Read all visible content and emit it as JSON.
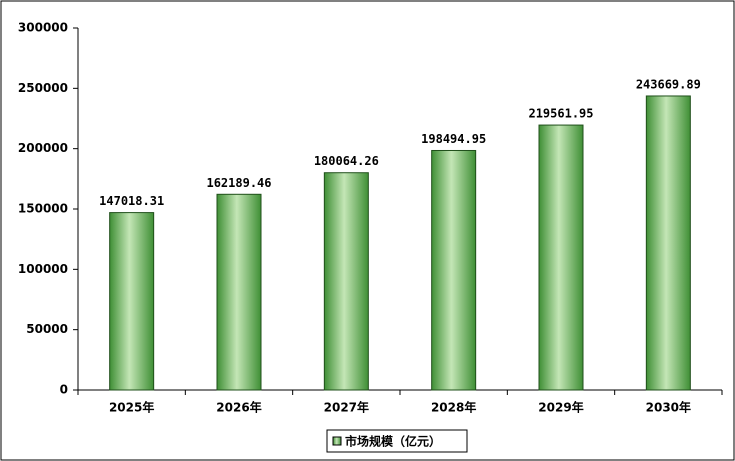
{
  "chart_data": {
    "type": "bar",
    "categories": [
      "2025年",
      "2026年",
      "2027年",
      "2028年",
      "2029年",
      "2030年"
    ],
    "series": [
      {
        "name": "市场规模（亿元）",
        "color": "#3f8f35",
        "values": [
          147018.31,
          162189.46,
          180064.26,
          198494.95,
          219561.95,
          243669.89
        ]
      }
    ],
    "ylim": [
      0,
      300000
    ],
    "yticks": [
      0,
      50000,
      100000,
      150000,
      200000,
      250000,
      300000
    ],
    "grid": false,
    "legend": "bottom"
  }
}
